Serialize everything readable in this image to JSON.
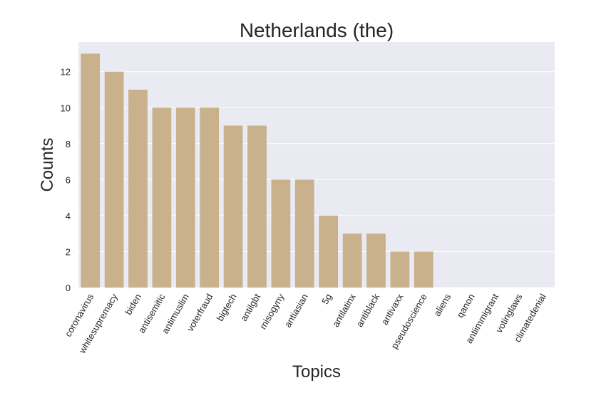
{
  "chart_data": {
    "type": "bar",
    "title": "Netherlands (the)",
    "xlabel": "Topics",
    "ylabel": "Counts",
    "categories": [
      "coronavirus",
      "whitesupremacy",
      "biden",
      "antisemitic",
      "antimuslim",
      "voterfraud",
      "bigtech",
      "antilgbt",
      "misogyny",
      "antiasian",
      "5g",
      "antilatinx",
      "antiblack",
      "antivaxx",
      "pseudoscience",
      "aliens",
      "qanon",
      "antiimmigrant",
      "votinglaws",
      "climatedenial"
    ],
    "values": [
      13,
      12,
      11,
      10,
      10,
      10,
      9,
      9,
      6,
      6,
      4,
      3,
      3,
      2,
      2,
      0,
      0,
      0,
      0,
      0
    ],
    "ylim": [
      0,
      13.65
    ],
    "yticks": [
      0,
      2,
      4,
      6,
      8,
      10,
      12
    ],
    "grid": true,
    "colors": {
      "bar": "#c8b18c",
      "plot_bg": "#eaeaf2",
      "grid": "#ffffff"
    }
  }
}
